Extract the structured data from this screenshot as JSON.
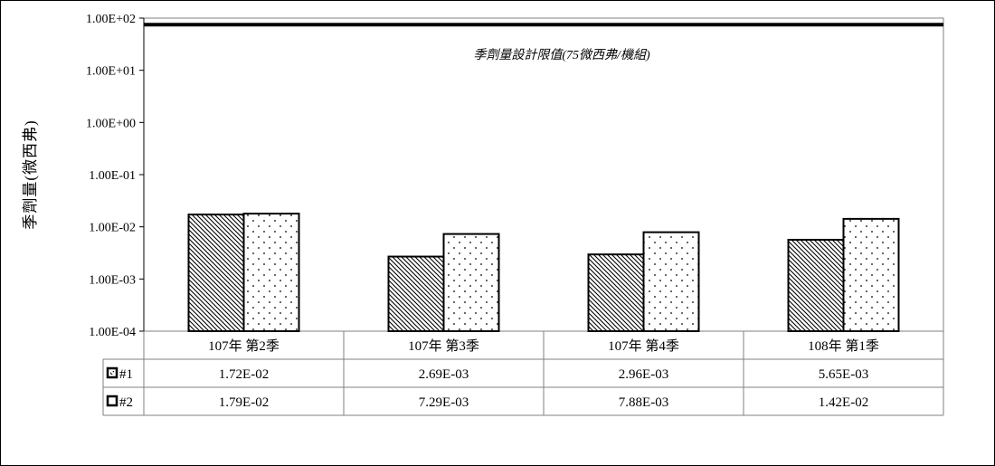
{
  "chart_data": {
    "type": "bar",
    "ylabel": "季劑量(微西弗)",
    "yscale": "log",
    "ylim": [
      0.0001,
      100
    ],
    "yticks": [
      "1.00E-04",
      "1.00E-03",
      "1.00E-02",
      "1.00E-01",
      "1.00E+00",
      "1.00E+01",
      "1.00E+02"
    ],
    "categories": [
      "107年 第2季",
      "107年 第3季",
      "107年 第4季",
      "108年 第1季"
    ],
    "series": [
      {
        "name": "#1",
        "pattern": "diagonal-hatch",
        "values": [
          0.0172,
          0.00269,
          0.00296,
          0.00565
        ],
        "labels": [
          "1.72E-02",
          "2.69E-03",
          "2.96E-03",
          "5.65E-03"
        ]
      },
      {
        "name": "#2",
        "pattern": "dots",
        "values": [
          0.0179,
          0.00729,
          0.00788,
          0.0142
        ],
        "labels": [
          "1.79E-02",
          "7.29E-03",
          "7.88E-03",
          "1.42E-02"
        ]
      }
    ],
    "reference_line": {
      "value": 75,
      "label": "季劑量設計限值(75微西弗/機組)"
    },
    "legend_placement": "data-table-left",
    "grid": false
  }
}
